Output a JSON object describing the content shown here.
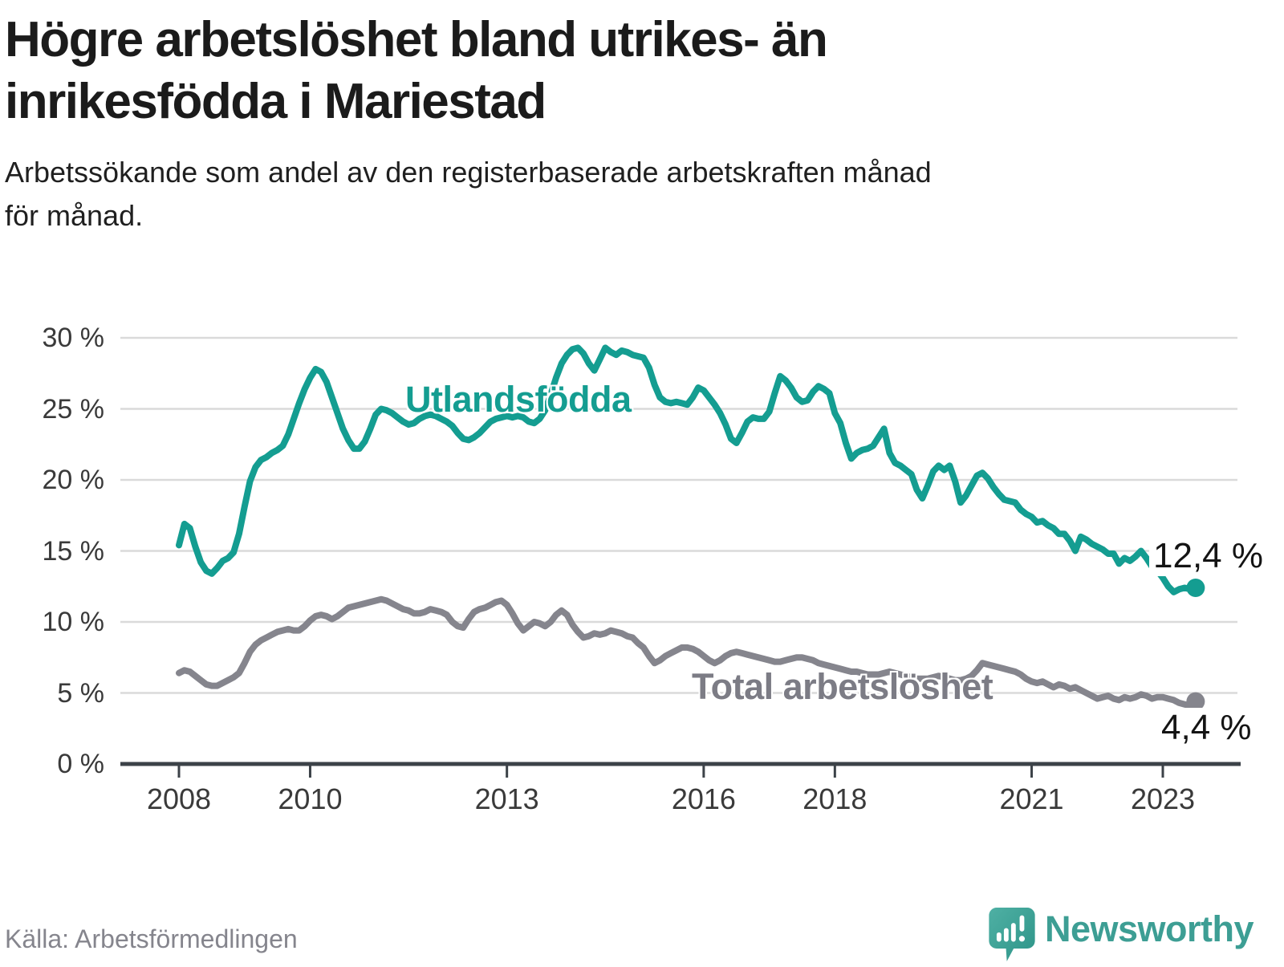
{
  "title": {
    "line1": "Högre arbetslöshet bland utrikes- än",
    "line2": "inrikesfödda i Mariestad"
  },
  "subtitle": {
    "line1": "Arbetssökande som andel av den registerbaserade arbetskraften månad",
    "line2": "för månad."
  },
  "source": "Källa: Arbetsförmedlingen",
  "logo": {
    "text": "Newsworthy",
    "icon": "newsworthy-speech-bubble-chart-icon"
  },
  "colors": {
    "teal_line": "#149d91",
    "gray_line": "#85858d",
    "gridline": "#dadada",
    "axis_line": "#3c4248",
    "axis_text": "#3a3a3a",
    "title_text": "#1b1b1b",
    "source_text": "#85858d",
    "logo_teal": "#3d9e94",
    "end_label_text": "#141414"
  },
  "chart_data": {
    "type": "line",
    "unit": "%",
    "frequency": "monthly",
    "x_start": "2008-01",
    "x_end": "2023-07",
    "ylim": [
      0,
      30
    ],
    "grid": true,
    "legend_position": "inline-labels",
    "y_axis": {
      "tick_values": [
        30,
        25,
        20,
        15,
        10,
        5,
        0
      ],
      "tick_labels": [
        "30 %",
        "25 %",
        "20 %",
        "15 %",
        "10 %",
        "5 %",
        "0 %"
      ]
    },
    "x_axis": {
      "tick_years": [
        2008,
        2010,
        2013,
        2016,
        2018,
        2021,
        2023
      ],
      "tick_labels": [
        "2008",
        "2010",
        "2013",
        "2016",
        "2018",
        "2021",
        "2023"
      ]
    },
    "series": [
      {
        "name": "Utlandsfödda",
        "color": "#149d91",
        "end_label": "12,4 %",
        "end_value": 12.4,
        "values": [
          15.4,
          16.9,
          16.6,
          15.3,
          14.2,
          13.6,
          13.4,
          13.8,
          14.3,
          14.5,
          14.9,
          16.2,
          18.1,
          19.9,
          20.9,
          21.4,
          21.6,
          21.9,
          22.1,
          22.4,
          23.2,
          24.3,
          25.4,
          26.4,
          27.2,
          27.8,
          27.6,
          26.9,
          25.8,
          24.7,
          23.6,
          22.8,
          22.2,
          22.2,
          22.7,
          23.6,
          24.6,
          25.0,
          24.9,
          24.7,
          24.4,
          24.1,
          23.9,
          24.0,
          24.3,
          24.5,
          24.6,
          24.5,
          24.3,
          24.1,
          23.8,
          23.3,
          22.9,
          22.8,
          23.0,
          23.3,
          23.7,
          24.1,
          24.3,
          24.4,
          24.5,
          24.4,
          24.5,
          24.4,
          24.1,
          24.0,
          24.3,
          24.9,
          26.0,
          27.2,
          28.2,
          28.8,
          29.2,
          29.3,
          28.9,
          28.2,
          27.7,
          28.5,
          29.3,
          29.0,
          28.8,
          29.1,
          29.0,
          28.8,
          28.7,
          28.6,
          27.9,
          26.7,
          25.8,
          25.5,
          25.4,
          25.5,
          25.4,
          25.3,
          25.8,
          26.5,
          26.3,
          25.8,
          25.3,
          24.7,
          23.9,
          22.9,
          22.6,
          23.3,
          24.1,
          24.4,
          24.3,
          24.3,
          24.8,
          26.1,
          27.3,
          27.0,
          26.5,
          25.8,
          25.5,
          25.6,
          26.2,
          26.6,
          26.4,
          26.1,
          24.7,
          24.0,
          22.6,
          21.5,
          21.9,
          22.1,
          22.2,
          22.4,
          23.0,
          23.6,
          21.9,
          21.2,
          21.0,
          20.7,
          20.4,
          19.3,
          18.7,
          19.6,
          20.6,
          21.0,
          20.7,
          21.0,
          19.9,
          18.4,
          18.9,
          19.6,
          20.3,
          20.5,
          20.1,
          19.5,
          19.0,
          18.6,
          18.5,
          18.4,
          17.9,
          17.6,
          17.4,
          17.0,
          17.1,
          16.8,
          16.6,
          16.2,
          16.2,
          15.7,
          15.0,
          16.0,
          15.8,
          15.5,
          15.3,
          15.1,
          14.8,
          14.8,
          14.1,
          14.5,
          14.3,
          14.6,
          15.0,
          14.5,
          13.9,
          13.6,
          13.1,
          12.5,
          12.1,
          12.3,
          12.4,
          12.3,
          12.4
        ]
      },
      {
        "name": "Total arbetslöshet",
        "color": "#85858d",
        "end_label": "4,4 %",
        "end_value": 4.4,
        "values": [
          6.4,
          6.6,
          6.5,
          6.2,
          5.9,
          5.6,
          5.5,
          5.5,
          5.7,
          5.9,
          6.1,
          6.4,
          7.1,
          7.9,
          8.4,
          8.7,
          8.9,
          9.1,
          9.3,
          9.4,
          9.5,
          9.4,
          9.4,
          9.7,
          10.1,
          10.4,
          10.5,
          10.4,
          10.2,
          10.4,
          10.7,
          11.0,
          11.1,
          11.2,
          11.3,
          11.4,
          11.5,
          11.6,
          11.5,
          11.3,
          11.1,
          10.9,
          10.8,
          10.6,
          10.6,
          10.7,
          10.9,
          10.8,
          10.7,
          10.5,
          10.0,
          9.7,
          9.6,
          10.2,
          10.7,
          10.9,
          11.0,
          11.2,
          11.4,
          11.5,
          11.2,
          10.6,
          9.9,
          9.4,
          9.7,
          10.0,
          9.9,
          9.7,
          10.0,
          10.5,
          10.8,
          10.5,
          9.8,
          9.3,
          8.9,
          9.0,
          9.2,
          9.1,
          9.2,
          9.4,
          9.3,
          9.2,
          9.0,
          8.9,
          8.5,
          8.2,
          7.6,
          7.1,
          7.3,
          7.6,
          7.8,
          8.0,
          8.2,
          8.2,
          8.1,
          7.9,
          7.6,
          7.3,
          7.1,
          7.3,
          7.6,
          7.8,
          7.9,
          7.8,
          7.7,
          7.6,
          7.5,
          7.4,
          7.3,
          7.2,
          7.2,
          7.3,
          7.4,
          7.5,
          7.5,
          7.4,
          7.3,
          7.1,
          7.0,
          6.9,
          6.8,
          6.7,
          6.6,
          6.5,
          6.5,
          6.4,
          6.3,
          6.3,
          6.3,
          6.4,
          6.5,
          6.4,
          6.3,
          6.2,
          6.1,
          6.0,
          6.0,
          6.0,
          6.1,
          6.2,
          6.1,
          6.0,
          5.9,
          5.9,
          6.0,
          6.2,
          6.6,
          7.1,
          7.0,
          6.9,
          6.8,
          6.7,
          6.6,
          6.5,
          6.3,
          6.0,
          5.8,
          5.7,
          5.8,
          5.6,
          5.4,
          5.6,
          5.5,
          5.3,
          5.4,
          5.2,
          5.0,
          4.8,
          4.6,
          4.7,
          4.8,
          4.6,
          4.5,
          4.7,
          4.6,
          4.7,
          4.9,
          4.8,
          4.6,
          4.7,
          4.7,
          4.6,
          4.5,
          4.3,
          4.2,
          4.1,
          4.4
        ]
      }
    ]
  }
}
